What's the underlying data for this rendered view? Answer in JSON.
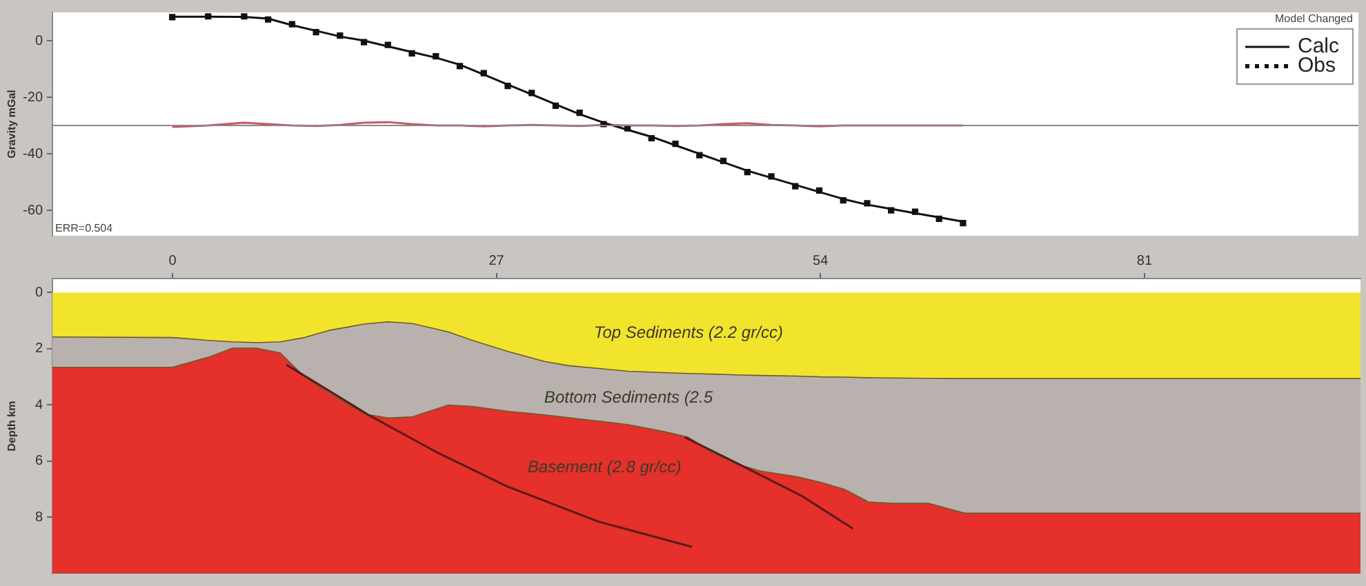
{
  "chart_data": [
    {
      "type": "line",
      "ylabel": "Gravity mGal",
      "x": [
        0,
        3,
        6,
        8,
        10,
        12,
        14,
        16,
        18,
        20,
        22,
        24,
        26,
        28,
        30,
        32,
        34,
        36,
        38,
        40,
        42,
        44,
        46,
        48,
        50,
        52,
        54,
        56,
        58,
        60,
        62,
        64,
        66
      ],
      "series": [
        {
          "name": "Calc",
          "color": "#111111",
          "line_style": "solid",
          "marker": "none",
          "values": [
            8.5,
            8.5,
            8.4,
            7.8,
            5.5,
            3.5,
            1.5,
            0,
            -2,
            -4,
            -6,
            -8.5,
            -12,
            -15.5,
            -19,
            -22.5,
            -26,
            -29,
            -31.5,
            -34,
            -37,
            -40,
            -43,
            -46,
            -48.5,
            -51,
            -53.5,
            -56,
            -58,
            -59.5,
            -61,
            -62.5,
            -64
          ]
        },
        {
          "name": "Obs",
          "type": "scatter",
          "color": "#111111",
          "marker": "square",
          "values": [
            8.3,
            8.6,
            8.6,
            7.5,
            5.8,
            3,
            1.8,
            -0.5,
            -1.5,
            -4.5,
            -5.5,
            -9,
            -11.5,
            -16,
            -18.5,
            -23,
            -25.5,
            -29.5,
            -31,
            -34.5,
            -36.5,
            -40.5,
            -42.5,
            -46.5,
            -48,
            -51.5,
            -53,
            -56.5,
            -57.5,
            -60,
            -60.5,
            -63,
            -64.5
          ]
        },
        {
          "color": "#cc5566",
          "line_style": "solid",
          "marker": "none",
          "values": [
            -30.5,
            -30,
            -29,
            -29.5,
            -30,
            -30.2,
            -29.8,
            -29,
            -28.8,
            -29.5,
            -30,
            -30,
            -30.3,
            -30,
            -29.8,
            -30,
            -30.2,
            -29.8,
            -30,
            -30,
            -30.2,
            -30,
            -29.5,
            -29.2,
            -29.8,
            -30,
            -30.3,
            -30,
            -30,
            -30,
            -30,
            -30,
            -30
          ]
        }
      ],
      "xlim": [
        -10,
        99
      ],
      "xticks": [
        0,
        27,
        54,
        81
      ],
      "ylim": [
        -69,
        10
      ],
      "yticks": [
        0,
        -20,
        -40,
        -60
      ],
      "tick_labels": "y",
      "grid": false,
      "legend": "top right",
      "ref_lines": [
        {
          "axis": "y",
          "value": -30,
          "color": "#888888"
        }
      ],
      "annotations": [
        "ERR=0.504",
        "Model Changed"
      ]
    },
    {
      "type": "area",
      "ylabel": "Depth km",
      "stacked": true,
      "x": [
        -10,
        0,
        3,
        5,
        7,
        9,
        11,
        13,
        16,
        18,
        20,
        23,
        25,
        28,
        31,
        33,
        36,
        38,
        41,
        43,
        45,
        47,
        49,
        52,
        54,
        56,
        58,
        60,
        63,
        66,
        70,
        99
      ],
      "series": [
        {
          "name": "Top Sediments (2.2 gr/cc)",
          "color": "#f2e42c",
          "values": [
            1.58,
            1.6,
            1.7,
            1.75,
            1.78,
            1.75,
            1.6,
            1.35,
            1.12,
            1.04,
            1.1,
            1.4,
            1.7,
            2.1,
            2.45,
            2.6,
            2.72,
            2.8,
            2.85,
            2.88,
            2.9,
            2.93,
            2.95,
            2.97,
            3.0,
            3.01,
            3.03,
            3.04,
            3.05,
            3.06,
            3.06,
            3.06
          ]
        },
        {
          "name": "Bottom Sediments (2.5",
          "color": "#b9b1ae",
          "values": [
            1.08,
            1.06,
            0.6,
            0.23,
            0.2,
            0.4,
            1.4,
            2.2,
            3.2,
            3.42,
            3.32,
            2.6,
            2.35,
            2.13,
            1.9,
            1.85,
            1.88,
            1.9,
            2.1,
            2.27,
            2.8,
            3.17,
            3.4,
            3.58,
            3.75,
            3.99,
            4.42,
            4.46,
            4.45,
            4.79,
            4.79,
            4.79
          ]
        },
        {
          "name": "Basement (2.8 gr/cc)",
          "color": "#e5302b",
          "values": [
            7.34,
            7.34,
            7.7,
            8.02,
            8.02,
            7.85,
            7.0,
            6.45,
            5.68,
            5.54,
            5.58,
            6.0,
            5.95,
            5.77,
            5.65,
            5.55,
            5.4,
            5.3,
            5.05,
            4.85,
            4.3,
            3.9,
            3.65,
            3.45,
            3.25,
            3.0,
            2.55,
            2.5,
            2.5,
            2.15,
            2.15,
            2.15
          ]
        },
        {
          "type": "line",
          "color": "#5a1a1a",
          "x": [
            9.5,
            16.4,
            22.1,
            27.9,
            35.5,
            43.3
          ],
          "values": [
            2.57,
            4.37,
            5.7,
            6.9,
            8.15,
            9.05
          ]
        },
        {
          "type": "line",
          "color": "#5a1a1a",
          "x": [
            42.7,
            46.7,
            52.5,
            56.7
          ],
          "values": [
            5.15,
            6.0,
            7.25,
            8.4
          ]
        }
      ],
      "xlim": [
        -10,
        99
      ],
      "xticks": [
        0,
        27,
        54,
        81
      ],
      "ylim": [
        10,
        -0.5
      ],
      "yticks": [
        0,
        2,
        4,
        6,
        8
      ],
      "grid": false
    }
  ]
}
